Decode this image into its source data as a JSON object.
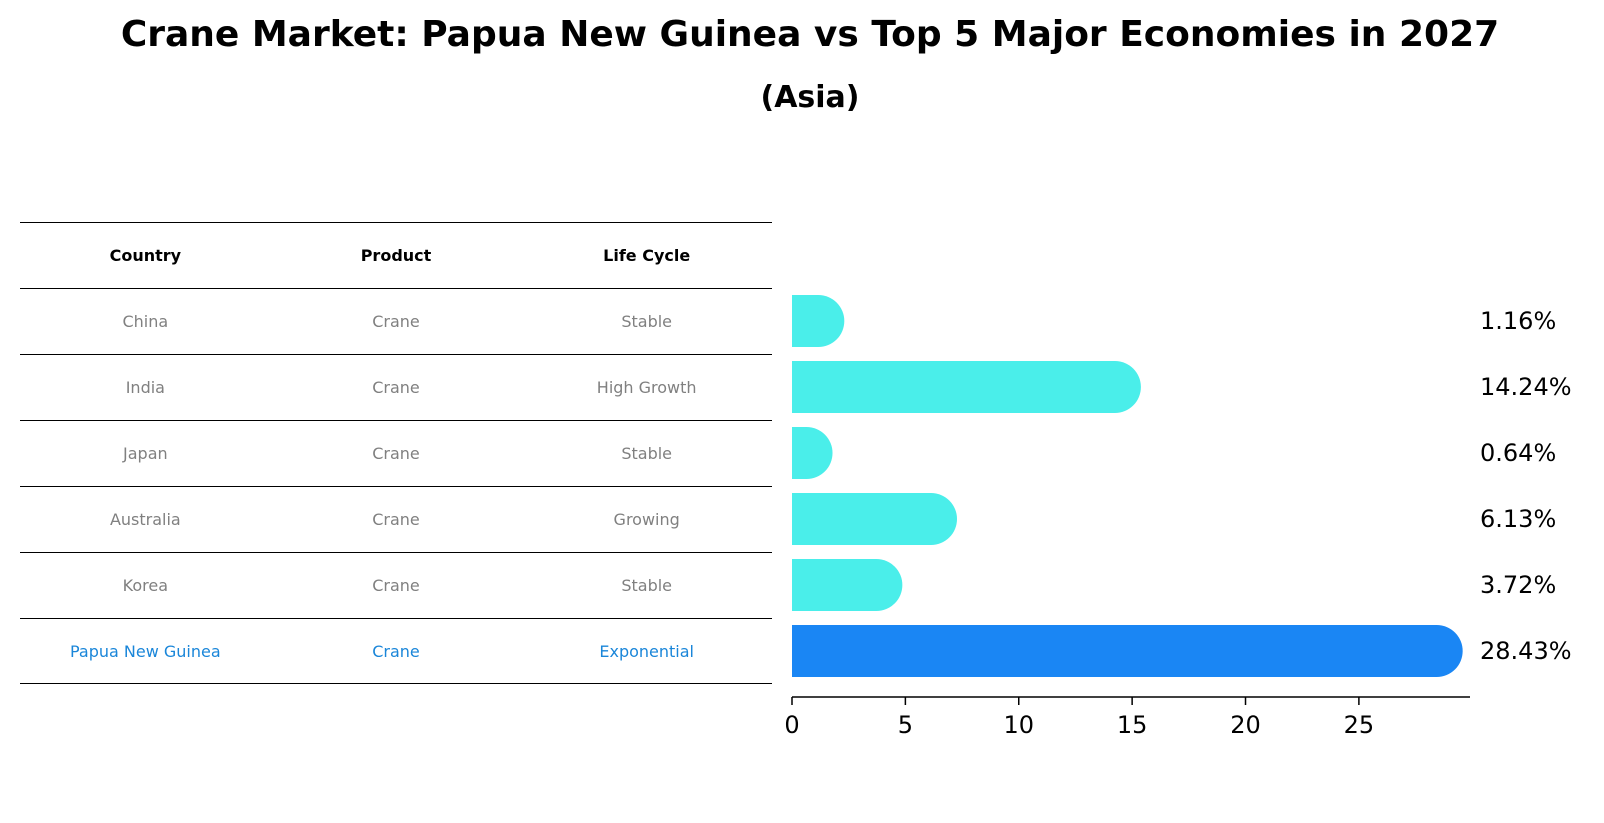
{
  "chart_data": {
    "type": "bar",
    "orientation": "horizontal",
    "title": "Crane Market: Papua New Guinea vs Top 5 Major Economies in 2027",
    "subtitle": "(Asia)",
    "table_headers": [
      "Country",
      "Product",
      "Life Cycle"
    ],
    "rows": [
      {
        "country": "China",
        "product": "Crane",
        "life_cycle": "Stable",
        "value": 1.16,
        "label": "1.16%",
        "highlight": false
      },
      {
        "country": "India",
        "product": "Crane",
        "life_cycle": "High Growth",
        "value": 14.24,
        "label": "14.24%",
        "highlight": false
      },
      {
        "country": "Japan",
        "product": "Crane",
        "life_cycle": "Stable",
        "value": 0.64,
        "label": "0.64%",
        "highlight": false
      },
      {
        "country": "Australia",
        "product": "Crane",
        "life_cycle": "Growing",
        "value": 6.13,
        "label": "6.13%",
        "highlight": false
      },
      {
        "country": "Korea",
        "product": "Crane",
        "life_cycle": "Stable",
        "value": 3.72,
        "label": "3.72%",
        "highlight": false
      },
      {
        "country": "Papua New Guinea",
        "product": "Crane",
        "life_cycle": "Exponential",
        "value": 28.43,
        "label": "28.43%",
        "highlight": true
      }
    ],
    "xlim": [
      0,
      29.9
    ],
    "xticks": [
      0,
      5,
      10,
      15,
      20,
      25
    ],
    "xlabel": "",
    "ylabel": "",
    "colors": {
      "default": "#4aeeea",
      "highlight": "#1a86f4",
      "highlight_text": "#1a86d9"
    }
  }
}
